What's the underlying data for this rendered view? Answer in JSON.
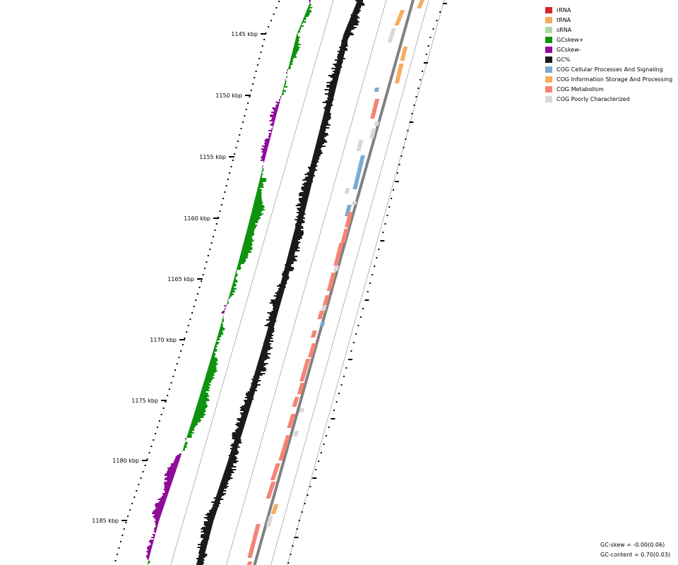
{
  "scale": {
    "labels": [
      "1145 kbp",
      "1150 kbp",
      "1155 kbp",
      "1160 kbp",
      "1165 kbp",
      "1170 kbp",
      "1175 kbp",
      "1180 kbp",
      "1185 kbp"
    ]
  },
  "legend": [
    {
      "label": "rRNA",
      "color": "#d62728"
    },
    {
      "label": "tRNA",
      "color": "#f7a85e"
    },
    {
      "label": "sRNA",
      "color": "#a8d99c"
    },
    {
      "label": "GCskew+",
      "color": "#0f930f"
    },
    {
      "label": "GCskew-",
      "color": "#8e0c9a"
    },
    {
      "label": "GC%",
      "color": "#1a1a1a"
    },
    {
      "label": "COG Cellular Processes And Signaling",
      "color": "#7eaad2"
    },
    {
      "label": "COG Information Storage And Processing",
      "color": "#f7ad60"
    },
    {
      "label": "COG Metabolism",
      "color": "#f58474"
    },
    {
      "label": "COG Poorly Characterized",
      "color": "#d8d8d8"
    }
  ],
  "stats": [
    "GC-skew = -0.00(0.06)",
    "GC-content = 0.70(0.03)"
  ]
}
